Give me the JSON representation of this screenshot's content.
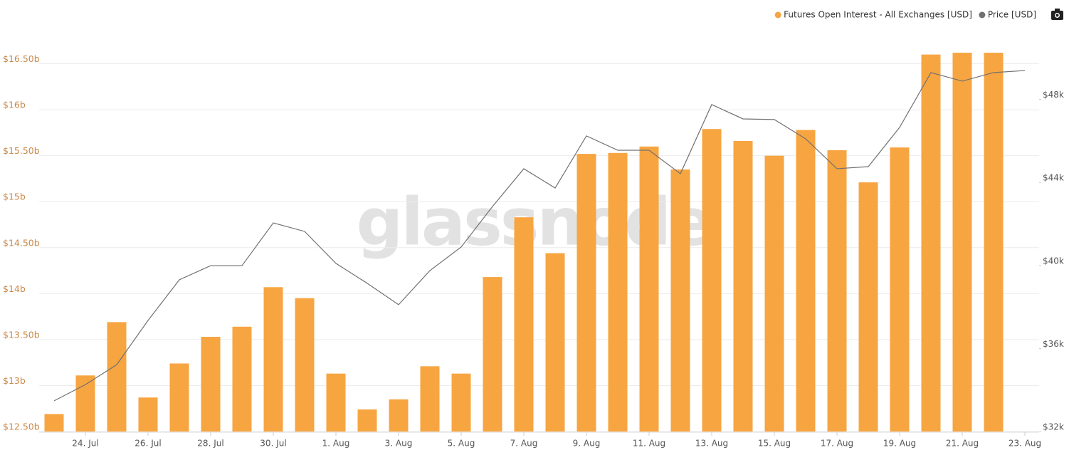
{
  "chart_data": {
    "type": "bar",
    "watermark": "glassnode",
    "categories": [
      null,
      "24. Jul",
      null,
      "26. Jul",
      null,
      "28. Jul",
      null,
      "30. Jul",
      null,
      "1. Aug",
      null,
      "3. Aug",
      null,
      "5. Aug",
      null,
      "7. Aug",
      null,
      "9. Aug",
      null,
      "11. Aug",
      null,
      "13. Aug",
      null,
      "15. Aug",
      null,
      "17. Aug",
      null,
      "19. Aug",
      null,
      "21. Aug",
      null,
      "23. Aug"
    ],
    "series": [
      {
        "name": "Futures Open Interest - All Exchanges [USD]",
        "color": "#f7a541",
        "type": "bar",
        "values": [
          12.69,
          13.11,
          13.69,
          12.87,
          13.24,
          13.53,
          13.64,
          14.07,
          13.95,
          13.13,
          12.74,
          12.85,
          13.21,
          13.13,
          14.18,
          14.83,
          14.44,
          15.52,
          15.53,
          15.6,
          15.35,
          15.79,
          15.66,
          15.5,
          15.78,
          15.56,
          15.21,
          15.59,
          16.6,
          16.62,
          16.62,
          null
        ]
      },
      {
        "name": "Price [USD]",
        "color": "#707070",
        "type": "line",
        "axis": "y2",
        "values": [
          33.48,
          34.26,
          35.22,
          37.35,
          39.31,
          39.99,
          39.99,
          42.05,
          41.64,
          40.1,
          39.14,
          38.11,
          39.75,
          40.89,
          42.84,
          44.66,
          43.73,
          46.24,
          45.55,
          45.55,
          44.42,
          47.75,
          47.06,
          47.03,
          46.1,
          44.66,
          44.76,
          46.65,
          49.29,
          48.88,
          49.29,
          49.39
        ]
      }
    ],
    "ylim": [
      12.5,
      17
    ],
    "yticks": [
      {
        "value": 12.5,
        "label": "$12.50b"
      },
      {
        "value": 13,
        "label": "$13b"
      },
      {
        "value": 13.5,
        "label": "$13.50b"
      },
      {
        "value": 14,
        "label": "$14b"
      },
      {
        "value": 14.5,
        "label": "$14.50b"
      },
      {
        "value": 15,
        "label": "$15b"
      },
      {
        "value": 15.5,
        "label": "$15.50b"
      },
      {
        "value": 16,
        "label": "$16b"
      },
      {
        "value": 16.5,
        "label": "$16.50b"
      }
    ],
    "y2lim": [
      32,
      51.93
    ],
    "y2ticks": [
      {
        "value": 32,
        "label": "$32k"
      },
      {
        "value": 36,
        "label": "$36k"
      },
      {
        "value": 40,
        "label": "$40k"
      },
      {
        "value": 44,
        "label": "$44k"
      },
      {
        "value": 48,
        "label": "$48k"
      }
    ],
    "grid": true
  }
}
